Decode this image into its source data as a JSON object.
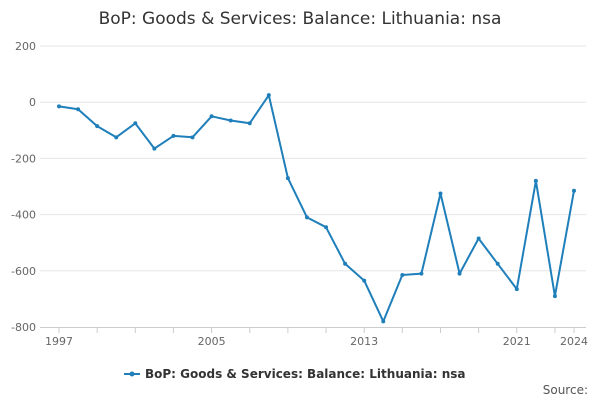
{
  "chart_data": {
    "type": "line",
    "title": "BoP: Goods & Services: Balance: Lithuania: nsa",
    "xlabel": "",
    "ylabel": "",
    "x": [
      1997,
      1998,
      1999,
      2000,
      2001,
      2002,
      2003,
      2004,
      2005,
      2006,
      2007,
      2008,
      2009,
      2010,
      2011,
      2012,
      2013,
      2014,
      2015,
      2016,
      2017,
      2018,
      2019,
      2020,
      2021,
      2022,
      2023,
      2024
    ],
    "series": [
      {
        "name": "BoP: Goods & Services: Balance: Lithuania: nsa",
        "color": "#1f7fba",
        "values": [
          -15,
          -25,
          -85,
          -125,
          -75,
          -165,
          -120,
          -125,
          -50,
          -65,
          -75,
          25,
          -270,
          -410,
          -445,
          -575,
          -635,
          -780,
          -615,
          -610,
          -325,
          -610,
          -485,
          -575,
          -665,
          -280,
          -690,
          -315
        ]
      }
    ],
    "ylim": [
      -800,
      200
    ],
    "yticks": [
      200,
      0,
      -200,
      -400,
      -600,
      -800
    ],
    "xlim": [
      1997,
      2024
    ],
    "xtick_labels": [
      1997,
      2005,
      2013,
      2021,
      2024
    ],
    "grid": true,
    "legend_position": "bottom",
    "source_label": "Source:"
  }
}
